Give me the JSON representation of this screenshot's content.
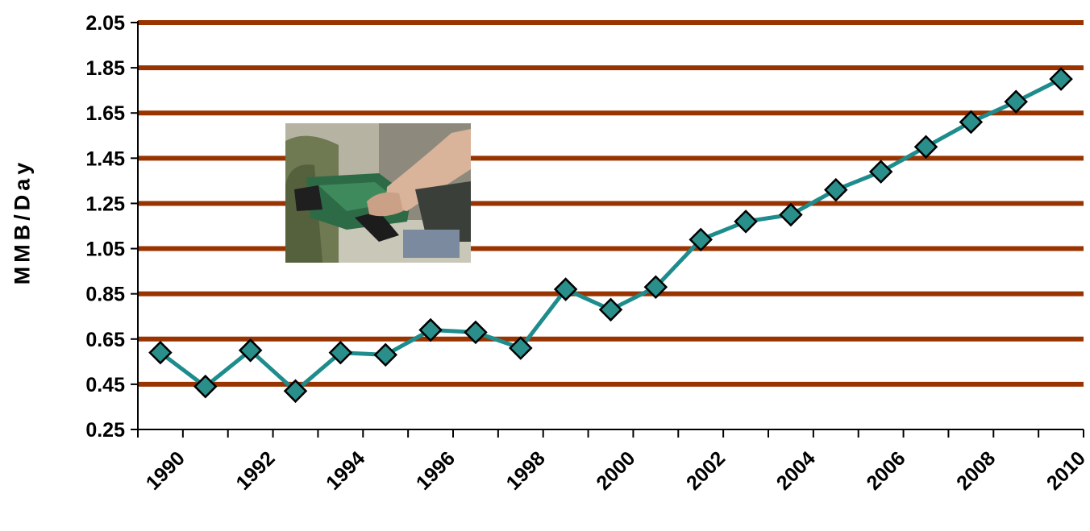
{
  "chart_data": {
    "type": "line",
    "title": "",
    "xlabel": "",
    "ylabel": "MMB/Day",
    "ylim": [
      0.25,
      2.05
    ],
    "y_ticks": [
      "0.25",
      "0.45",
      "0.65",
      "0.85",
      "1.05",
      "1.25",
      "1.45",
      "1.65",
      "1.85",
      "2.05"
    ],
    "x_tick_labels": [
      "1990",
      "1992",
      "1994",
      "1996",
      "1998",
      "2000",
      "2002",
      "2004",
      "2006",
      "2008",
      "2010"
    ],
    "x": [
      1990,
      1991,
      1992,
      1993,
      1994,
      1995,
      1996,
      1997,
      1998,
      1999,
      2000,
      2001,
      2002,
      2003,
      2004,
      2005,
      2006,
      2007,
      2008,
      2009,
      2010
    ],
    "series": [
      {
        "values": [
          0.59,
          0.44,
          0.6,
          0.42,
          0.59,
          0.58,
          0.69,
          0.68,
          0.61,
          0.87,
          0.78,
          0.88,
          1.09,
          1.17,
          1.2,
          1.31,
          1.39,
          1.5,
          1.61,
          1.7,
          1.8
        ]
      }
    ],
    "grid": true,
    "legend": "none"
  },
  "colors": {
    "gridline": "#993300",
    "series_line": "#1E8C8C",
    "marker_fill": "#2A8F8A",
    "marker_stroke": "#000000",
    "axis": "#000000"
  },
  "image": {
    "icon": "fuel-pump-nozzle-photo"
  }
}
